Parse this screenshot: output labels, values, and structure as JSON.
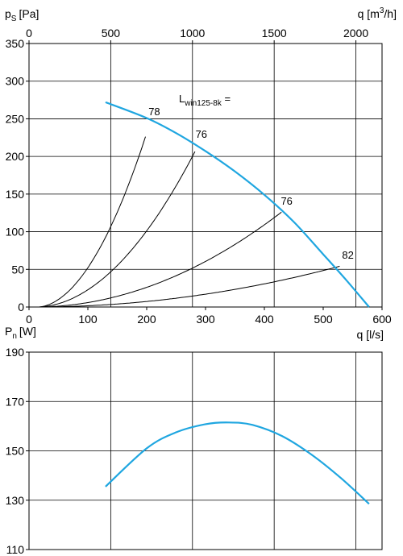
{
  "chart_data": [
    {
      "type": "line",
      "title": "",
      "ylabel": "p",
      "ylabel_sub": "S",
      "ylabel_unit": "[Pa]",
      "xlabel": "q [l/s]",
      "top_axis_label": "q [m",
      "top_axis_sup": "3",
      "top_axis_end": "/h]",
      "annotation_label": "L",
      "annotation_sub": "win125-8k",
      "annotation_suffix": " =",
      "xlim": [
        0,
        600
      ],
      "ylim": [
        0,
        350
      ],
      "x_ticks": [
        0,
        100,
        200,
        300,
        400,
        500,
        600
      ],
      "y_ticks": [
        0,
        50,
        100,
        150,
        200,
        250,
        300,
        350
      ],
      "top_ticks": [
        0,
        500,
        1000,
        1500,
        2000
      ],
      "grid": true,
      "colors": {
        "fan_curve": "#1fa6e0",
        "system_curves": "#000000",
        "grid": "#000000"
      },
      "fan_curve": {
        "x": [
          130,
          200,
          250,
          300,
          350,
          400,
          450,
          500,
          540,
          578
        ],
        "y": [
          272,
          251,
          231,
          207,
          180,
          149,
          113,
          70,
          35,
          0
        ]
      },
      "system_curves": [
        {
          "label": "78",
          "label_x": 203,
          "label_y": 255,
          "k": 0.00628,
          "xmax": 200
        },
        {
          "label": "76",
          "label_x": 283,
          "label_y": 225,
          "k": 0.00275,
          "xmax": 283
        },
        {
          "label": "76",
          "label_x": 428,
          "label_y": 136,
          "k": 0.00071,
          "xmax": 430
        },
        {
          "label": "82",
          "label_x": 532,
          "label_y": 64,
          "k": 0.0002,
          "xmax": 530
        }
      ]
    },
    {
      "type": "line",
      "title": "",
      "ylabel": "P",
      "ylabel_sub": "n",
      "ylabel_unit": "[W]",
      "xlim": [
        0,
        600
      ],
      "ylim": [
        110,
        190
      ],
      "y_ticks": [
        110,
        130,
        150,
        170,
        190
      ],
      "grid": true,
      "colors": {
        "power_curve": "#1fa6e0"
      },
      "power_curve": {
        "x": [
          130,
          200,
          250,
          300,
          340,
          380,
          430,
          480,
          530,
          578
        ],
        "y": [
          135.5,
          151,
          157.5,
          160.8,
          161.5,
          160.5,
          156,
          148.5,
          139,
          128.5
        ]
      }
    }
  ]
}
